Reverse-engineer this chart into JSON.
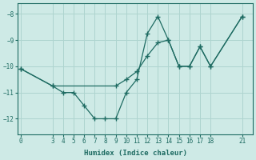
{
  "xlabel": "Humidex (Indice chaleur)",
  "background_color": "#ceeae6",
  "line_color": "#1e6b62",
  "grid_color": "#aed4cf",
  "series1_x": [
    0,
    3,
    4,
    5,
    6,
    7,
    8,
    9,
    10,
    11,
    12,
    13,
    14,
    15,
    16,
    17,
    18,
    21
  ],
  "series1_y": [
    -10.1,
    -10.75,
    -11.0,
    -11.0,
    -11.5,
    -12.0,
    -12.0,
    -12.0,
    -11.0,
    -10.5,
    -8.75,
    -8.1,
    -9.0,
    -10.0,
    -10.0,
    -9.25,
    -10.0,
    -8.1
  ],
  "series2_x": [
    0,
    3,
    9,
    10,
    11,
    12,
    13,
    14,
    15,
    16,
    17,
    18,
    21
  ],
  "series2_y": [
    -10.1,
    -10.75,
    -10.75,
    -10.5,
    -10.2,
    -9.6,
    -9.1,
    -9.0,
    -10.0,
    -10.0,
    -9.25,
    -10.0,
    -8.1
  ],
  "ylim": [
    -12.6,
    -7.6
  ],
  "xlim": [
    -0.3,
    22
  ],
  "yticks": [
    -8,
    -9,
    -10,
    -11,
    -12
  ],
  "xticks": [
    0,
    3,
    4,
    5,
    6,
    7,
    8,
    9,
    10,
    11,
    12,
    13,
    14,
    15,
    16,
    17,
    18,
    21
  ]
}
